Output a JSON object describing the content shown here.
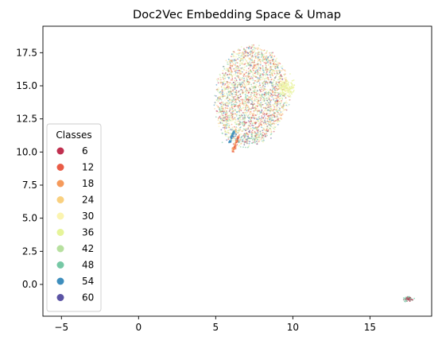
{
  "chart_data": {
    "type": "scatter",
    "title": "Doc2Vec Embedding Space & Umap",
    "xlabel": "",
    "ylabel": "",
    "xlim": [
      -6.2,
      19.0
    ],
    "ylim": [
      -2.4,
      19.5
    ],
    "x_ticks": [
      -5,
      0,
      5,
      10,
      15
    ],
    "x_tick_labels": [
      "−5",
      "0",
      "5",
      "10",
      "15"
    ],
    "y_ticks": [
      0.0,
      2.5,
      5.0,
      7.5,
      10.0,
      12.5,
      15.0,
      17.5
    ],
    "y_tick_labels": [
      "0.0",
      "2.5",
      "5.0",
      "7.5",
      "10.0",
      "12.5",
      "15.0",
      "17.5"
    ],
    "grid": false,
    "legend": {
      "title": "Classes",
      "placement": "lower-left",
      "entries": [
        {
          "label": "6",
          "color": "#c0304f"
        },
        {
          "label": "12",
          "color": "#e95c47"
        },
        {
          "label": "18",
          "color": "#f59a5b"
        },
        {
          "label": "24",
          "color": "#f9d07f"
        },
        {
          "label": "30",
          "color": "#fbf4b0"
        },
        {
          "label": "36",
          "color": "#e6f499"
        },
        {
          "label": "42",
          "color": "#b7e09f"
        },
        {
          "label": "48",
          "color": "#76c8a5"
        },
        {
          "label": "54",
          "color": "#3e8ebd"
        },
        {
          "label": "60",
          "color": "#5b53a4"
        }
      ]
    },
    "clusters": [
      {
        "name": "main",
        "center": [
          7.4,
          14.2
        ],
        "x_range": [
          4.5,
          10.2
        ],
        "y_range": [
          10.0,
          18.3
        ]
      },
      {
        "name": "small",
        "center": [
          17.5,
          -1.1
        ],
        "x_range": [
          17.1,
          17.9
        ],
        "y_range": [
          -1.4,
          -0.8
        ]
      }
    ]
  }
}
